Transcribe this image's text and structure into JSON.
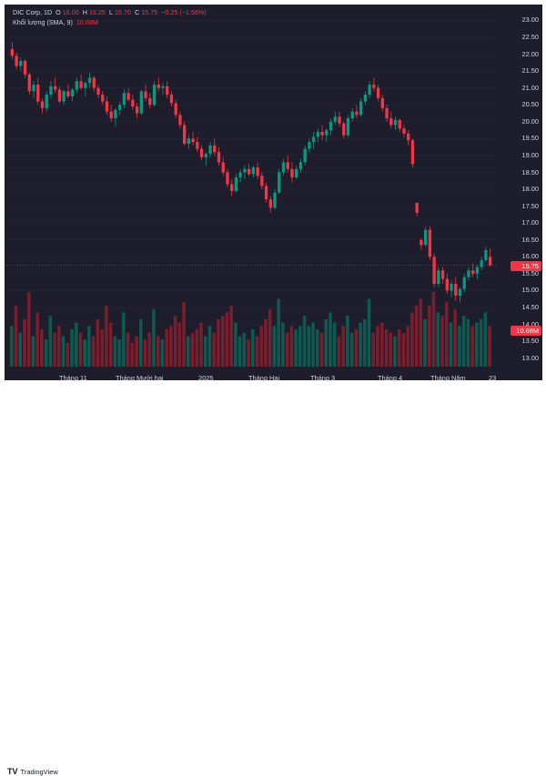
{
  "legend": {
    "symbol": "DIC Corp, 1D",
    "o_label": "O",
    "o_value": "16.00",
    "h_label": "H",
    "h_value": "16.25",
    "l_label": "L",
    "l_value": "15.70",
    "c_label": "C",
    "c_value": "15.75",
    "change": "−0.25 (−1.56%)",
    "volume_label": "Khối lượng (SMA, 9)",
    "volume_value": "10.68M"
  },
  "price_axis": {
    "ticks": [
      "23.00",
      "22.50",
      "22.00",
      "21.50",
      "21.00",
      "20.50",
      "20.00",
      "19.50",
      "19.00",
      "18.50",
      "18.00",
      "17.50",
      "17.00",
      "16.50",
      "16.00",
      "15.50",
      "15.00",
      "14.50",
      "14.00",
      "13.50",
      "13.00"
    ],
    "last_price_badge": "15.75",
    "volume_badge": "10.68M"
  },
  "time_axis": {
    "ticks": [
      "Tháng 11",
      "Tháng Mười hai",
      "2025",
      "Tháng Hai",
      "Tháng 3",
      "Tháng 4",
      "Tháng Năm",
      "23"
    ]
  },
  "footer": {
    "brand": "TradingView"
  },
  "colors": {
    "up": "#089981",
    "down": "#f23645",
    "background": "#1e1d2b",
    "vol_up": "#0d5b50",
    "vol_down": "#7a1e2e"
  },
  "chart_data": {
    "type": "candlestick",
    "ylim": [
      12.75,
      23.2
    ],
    "price_bars": [
      [
        22.15,
        22.35,
        21.85,
        21.95
      ],
      [
        21.95,
        22.05,
        21.55,
        21.65
      ],
      [
        21.65,
        21.9,
        21.5,
        21.8
      ],
      [
        21.8,
        21.85,
        21.3,
        21.4
      ],
      [
        21.4,
        21.45,
        20.8,
        20.9
      ],
      [
        20.9,
        21.2,
        20.7,
        21.1
      ],
      [
        21.1,
        21.3,
        20.5,
        20.6
      ],
      [
        20.6,
        20.7,
        20.25,
        20.4
      ],
      [
        20.4,
        20.9,
        20.3,
        20.8
      ],
      [
        20.8,
        21.2,
        20.7,
        21.05
      ],
      [
        21.05,
        21.3,
        20.85,
        20.95
      ],
      [
        20.95,
        21.05,
        20.55,
        20.6
      ],
      [
        20.6,
        20.95,
        20.5,
        20.9
      ],
      [
        20.9,
        21.1,
        20.7,
        20.75
      ],
      [
        20.75,
        21.0,
        20.6,
        20.95
      ],
      [
        20.95,
        21.3,
        20.85,
        21.2
      ],
      [
        21.2,
        21.4,
        20.95,
        21.0
      ],
      [
        21.0,
        21.2,
        20.75,
        21.15
      ],
      [
        21.15,
        21.45,
        21.0,
        21.3
      ],
      [
        21.3,
        21.35,
        20.9,
        21.0
      ],
      [
        21.0,
        21.1,
        20.7,
        20.8
      ],
      [
        20.8,
        20.9,
        20.5,
        20.6
      ],
      [
        20.6,
        20.75,
        20.2,
        20.3
      ],
      [
        20.3,
        20.5,
        20.0,
        20.1
      ],
      [
        20.1,
        20.4,
        19.85,
        20.35
      ],
      [
        20.35,
        20.6,
        20.2,
        20.5
      ],
      [
        20.5,
        20.95,
        20.4,
        20.85
      ],
      [
        20.85,
        21.0,
        20.6,
        20.65
      ],
      [
        20.65,
        20.8,
        20.35,
        20.45
      ],
      [
        20.45,
        20.55,
        20.1,
        20.25
      ],
      [
        20.25,
        20.95,
        20.2,
        20.9
      ],
      [
        20.9,
        21.1,
        20.6,
        20.7
      ],
      [
        20.7,
        20.85,
        20.4,
        20.5
      ],
      [
        20.5,
        21.2,
        20.45,
        21.1
      ],
      [
        21.1,
        21.3,
        20.9,
        21.0
      ],
      [
        21.0,
        21.15,
        20.8,
        21.05
      ],
      [
        21.05,
        21.2,
        20.7,
        20.8
      ],
      [
        20.8,
        20.9,
        20.45,
        20.55
      ],
      [
        20.55,
        20.65,
        20.1,
        20.2
      ],
      [
        20.2,
        20.3,
        19.8,
        19.9
      ],
      [
        19.9,
        20.0,
        19.3,
        19.35
      ],
      [
        19.35,
        19.6,
        19.2,
        19.5
      ],
      [
        19.5,
        19.7,
        19.3,
        19.4
      ],
      [
        19.4,
        19.55,
        19.1,
        19.2
      ],
      [
        19.2,
        19.3,
        18.85,
        18.95
      ],
      [
        18.95,
        19.1,
        18.7,
        19.05
      ],
      [
        19.05,
        19.4,
        18.95,
        19.3
      ],
      [
        19.3,
        19.5,
        19.0,
        19.1
      ],
      [
        19.1,
        19.25,
        18.7,
        18.8
      ],
      [
        18.8,
        18.95,
        18.4,
        18.5
      ],
      [
        18.5,
        18.6,
        18.05,
        18.15
      ],
      [
        18.15,
        18.3,
        17.8,
        17.95
      ],
      [
        17.95,
        18.45,
        17.9,
        18.35
      ],
      [
        18.35,
        18.6,
        18.2,
        18.5
      ],
      [
        18.5,
        18.7,
        18.3,
        18.6
      ],
      [
        18.6,
        18.75,
        18.4,
        18.45
      ],
      [
        18.45,
        18.7,
        18.35,
        18.65
      ],
      [
        18.65,
        18.8,
        18.3,
        18.4
      ],
      [
        18.4,
        18.5,
        18.0,
        18.1
      ],
      [
        18.1,
        18.2,
        17.6,
        17.7
      ],
      [
        17.7,
        17.8,
        17.3,
        17.45
      ],
      [
        17.45,
        18.0,
        17.4,
        17.9
      ],
      [
        17.9,
        18.6,
        17.85,
        18.5
      ],
      [
        18.5,
        18.9,
        18.4,
        18.8
      ],
      [
        18.8,
        19.0,
        18.5,
        18.6
      ],
      [
        18.6,
        18.8,
        18.2,
        18.35
      ],
      [
        18.35,
        18.7,
        18.3,
        18.6
      ],
      [
        18.6,
        18.9,
        18.5,
        18.8
      ],
      [
        18.8,
        19.3,
        18.7,
        19.2
      ],
      [
        19.2,
        19.5,
        19.1,
        19.4
      ],
      [
        19.4,
        19.7,
        19.2,
        19.55
      ],
      [
        19.55,
        19.8,
        19.4,
        19.7
      ],
      [
        19.7,
        19.9,
        19.45,
        19.6
      ],
      [
        19.6,
        19.8,
        19.4,
        19.75
      ],
      [
        19.75,
        20.1,
        19.6,
        20.0
      ],
      [
        20.0,
        20.3,
        19.9,
        20.15
      ],
      [
        20.15,
        20.3,
        19.85,
        19.95
      ],
      [
        19.95,
        20.0,
        19.5,
        19.6
      ],
      [
        19.6,
        20.2,
        19.55,
        20.1
      ],
      [
        20.1,
        20.4,
        20.0,
        20.3
      ],
      [
        20.3,
        20.5,
        20.1,
        20.2
      ],
      [
        20.2,
        20.7,
        20.15,
        20.6
      ],
      [
        20.6,
        20.9,
        20.5,
        20.8
      ],
      [
        20.8,
        21.2,
        20.7,
        21.1
      ],
      [
        21.1,
        21.3,
        20.9,
        21.0
      ],
      [
        21.0,
        21.1,
        20.6,
        20.7
      ],
      [
        20.7,
        20.8,
        20.3,
        20.4
      ],
      [
        20.4,
        20.5,
        20.0,
        20.1
      ],
      [
        20.1,
        20.3,
        19.8,
        19.9
      ],
      [
        19.9,
        20.15,
        19.75,
        20.05
      ],
      [
        20.05,
        20.1,
        19.7,
        19.8
      ],
      [
        19.8,
        19.9,
        19.55,
        19.65
      ],
      [
        19.65,
        19.75,
        19.3,
        19.45
      ],
      [
        19.45,
        19.5,
        18.65,
        18.75
      ],
      [
        17.6,
        17.6,
        17.2,
        17.3
      ],
      [
        16.5,
        16.55,
        16.2,
        16.35
      ],
      [
        16.35,
        16.9,
        16.3,
        16.8
      ],
      [
        16.8,
        16.9,
        15.9,
        16.0
      ],
      [
        16.0,
        16.1,
        15.1,
        15.2
      ],
      [
        15.2,
        15.7,
        15.1,
        15.6
      ],
      [
        15.6,
        15.7,
        15.2,
        15.35
      ],
      [
        15.35,
        15.5,
        14.9,
        15.0
      ],
      [
        15.0,
        15.3,
        14.8,
        15.2
      ],
      [
        15.2,
        15.4,
        14.7,
        14.85
      ],
      [
        14.85,
        15.1,
        14.65,
        15.05
      ],
      [
        15.05,
        15.5,
        14.95,
        15.4
      ],
      [
        15.4,
        15.7,
        15.3,
        15.6
      ],
      [
        15.6,
        15.8,
        15.4,
        15.5
      ],
      [
        15.5,
        15.75,
        15.35,
        15.7
      ],
      [
        15.7,
        16.0,
        15.6,
        15.9
      ],
      [
        15.9,
        16.3,
        15.85,
        16.2
      ],
      [
        16.0,
        16.25,
        15.7,
        15.75
      ]
    ],
    "volume_bars": [
      [
        12,
        0
      ],
      [
        18,
        1
      ],
      [
        10,
        0
      ],
      [
        14,
        1
      ],
      [
        22,
        1
      ],
      [
        9,
        0
      ],
      [
        16,
        1
      ],
      [
        11,
        1
      ],
      [
        8,
        0
      ],
      [
        15,
        0
      ],
      [
        10,
        1
      ],
      [
        12,
        1
      ],
      [
        9,
        0
      ],
      [
        7,
        1
      ],
      [
        11,
        0
      ],
      [
        13,
        0
      ],
      [
        10,
        1
      ],
      [
        8,
        0
      ],
      [
        12,
        0
      ],
      [
        9,
        1
      ],
      [
        14,
        1
      ],
      [
        11,
        1
      ],
      [
        18,
        1
      ],
      [
        13,
        1
      ],
      [
        9,
        0
      ],
      [
        8,
        0
      ],
      [
        16,
        0
      ],
      [
        10,
        1
      ],
      [
        7,
        1
      ],
      [
        9,
        1
      ],
      [
        14,
        0
      ],
      [
        8,
        1
      ],
      [
        10,
        1
      ],
      [
        17,
        0
      ],
      [
        9,
        1
      ],
      [
        8,
        0
      ],
      [
        11,
        1
      ],
      [
        12,
        1
      ],
      [
        15,
        1
      ],
      [
        13,
        1
      ],
      [
        19,
        1
      ],
      [
        9,
        0
      ],
      [
        10,
        1
      ],
      [
        11,
        1
      ],
      [
        13,
        1
      ],
      [
        9,
        0
      ],
      [
        12,
        0
      ],
      [
        10,
        1
      ],
      [
        14,
        1
      ],
      [
        15,
        1
      ],
      [
        16,
        1
      ],
      [
        18,
        1
      ],
      [
        13,
        0
      ],
      [
        9,
        0
      ],
      [
        10,
        0
      ],
      [
        8,
        1
      ],
      [
        11,
        0
      ],
      [
        9,
        1
      ],
      [
        12,
        1
      ],
      [
        14,
        1
      ],
      [
        17,
        1
      ],
      [
        12,
        0
      ],
      [
        20,
        0
      ],
      [
        13,
        0
      ],
      [
        10,
        1
      ],
      [
        12,
        1
      ],
      [
        11,
        0
      ],
      [
        12,
        0
      ],
      [
        15,
        0
      ],
      [
        12,
        0
      ],
      [
        13,
        0
      ],
      [
        11,
        0
      ],
      [
        10,
        1
      ],
      [
        14,
        0
      ],
      [
        16,
        0
      ],
      [
        13,
        0
      ],
      [
        9,
        1
      ],
      [
        12,
        1
      ],
      [
        15,
        0
      ],
      [
        10,
        0
      ],
      [
        11,
        1
      ],
      [
        13,
        0
      ],
      [
        14,
        0
      ],
      [
        20,
        0
      ],
      [
        10,
        1
      ],
      [
        12,
        1
      ],
      [
        13,
        1
      ],
      [
        11,
        1
      ],
      [
        10,
        1
      ],
      [
        9,
        0
      ],
      [
        11,
        1
      ],
      [
        10,
        1
      ],
      [
        12,
        1
      ],
      [
        16,
        1
      ],
      [
        18,
        1
      ],
      [
        20,
        1
      ],
      [
        14,
        0
      ],
      [
        18,
        1
      ],
      [
        22,
        1
      ],
      [
        16,
        0
      ],
      [
        15,
        1
      ],
      [
        19,
        1
      ],
      [
        13,
        0
      ],
      [
        17,
        1
      ],
      [
        12,
        0
      ],
      [
        15,
        0
      ],
      [
        14,
        0
      ],
      [
        12,
        1
      ],
      [
        13,
        0
      ],
      [
        14,
        0
      ],
      [
        16,
        0
      ],
      [
        12,
        1
      ]
    ],
    "last_price": 15.75
  }
}
